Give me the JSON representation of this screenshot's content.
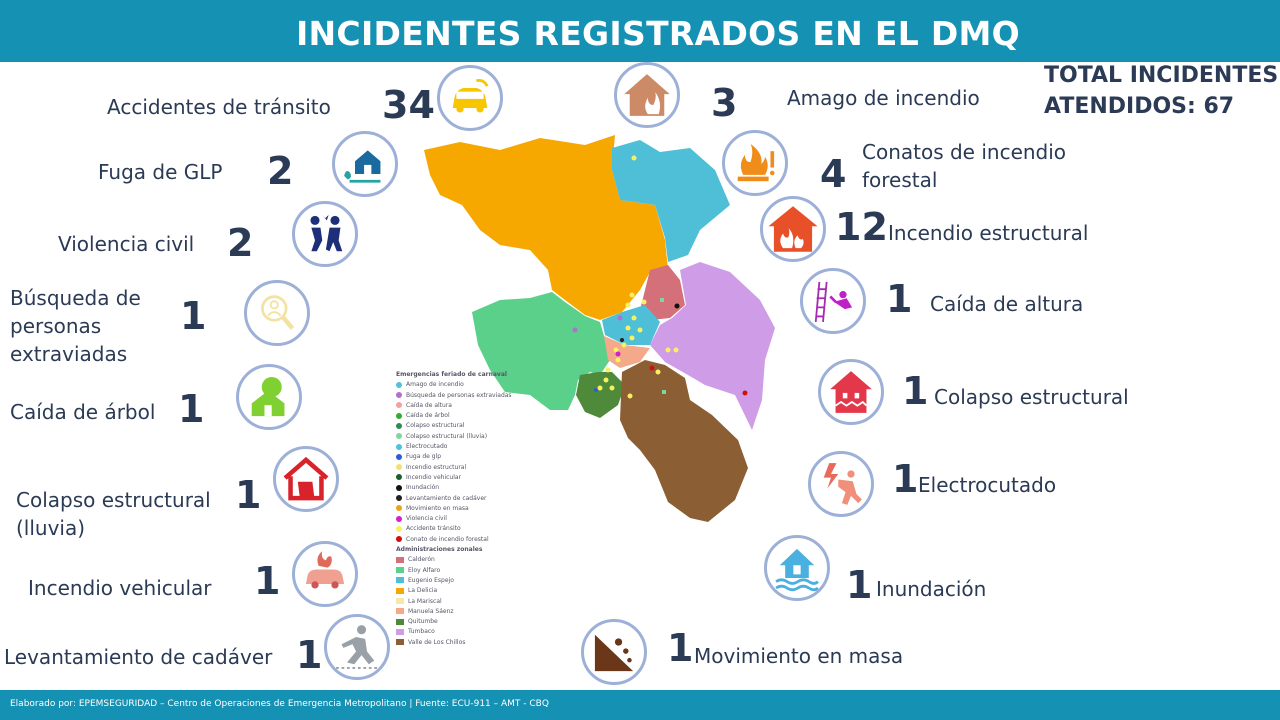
{
  "title": "INCIDENTES REGISTRADOS EN EL DMQ",
  "total_line1": "TOTAL INCIDENTES",
  "total_line2": "ATENDIDOS: 67",
  "footer": "Elaborado por: EPEMSEGURIDAD – Centro de Operaciones de Emergencia Metropolitano | Fuente: ECU-911 – AMT - CBQ",
  "incidents": {
    "accidentes": {
      "label": "Accidentes de tránsito",
      "count": "34",
      "icon": "car-icon"
    },
    "glp": {
      "label": "Fuga de GLP",
      "count": "2",
      "icon": "gas-leak-icon"
    },
    "violencia": {
      "label": "Violencia civil",
      "count": "2",
      "icon": "fight-icon"
    },
    "busqueda": {
      "label1": "Búsqueda de",
      "label2": "personas",
      "label3": "extraviadas",
      "count": "1",
      "icon": "search-person-icon"
    },
    "arbol": {
      "label": "Caída de árbol",
      "count": "1",
      "icon": "fallen-tree-icon"
    },
    "colapso_lluvia": {
      "label1": "Colapso estructural",
      "label2": "(lluvia)",
      "count": "1",
      "icon": "collapsed-house-icon"
    },
    "vehicular": {
      "label": "Incendio vehicular",
      "count": "1",
      "icon": "car-fire-icon"
    },
    "cadaver": {
      "label": "Levantamiento de cadáver",
      "count": "1",
      "icon": "falling-person-icon"
    },
    "amago": {
      "label": "Amago de incendio",
      "count": "3",
      "icon": "house-fire-icon"
    },
    "conatos": {
      "label1": "Conatos de incendio",
      "label2": "forestal",
      "count": "4",
      "icon": "forest-fire-icon"
    },
    "estructural": {
      "label": "Incendio estructural",
      "count": "12",
      "icon": "building-fire-icon"
    },
    "altura": {
      "label": "Caída de altura",
      "count": "1",
      "icon": "fall-from-height-icon"
    },
    "colapso": {
      "label": "Colapso estructural",
      "count": "1",
      "icon": "structural-collapse-icon"
    },
    "electrocutado": {
      "label": "Electrocutado",
      "count": "1",
      "icon": "electrocution-icon"
    },
    "inundacion": {
      "label": "Inundación",
      "count": "1",
      "icon": "flood-icon"
    },
    "movimiento": {
      "label": "Movimiento en masa",
      "count": "1",
      "icon": "landslide-icon"
    }
  },
  "legend": {
    "title": "Emergencias feriado de carnaval",
    "items": [
      {
        "label": "Amago de incendio",
        "color": "#4fc3d8"
      },
      {
        "label": "Búsqueda de personas extraviadas",
        "color": "#b070d0"
      },
      {
        "label": "Caída de altura",
        "color": "#f4a0a0"
      },
      {
        "label": "Caída de árbol",
        "color": "#33aa33"
      },
      {
        "label": "Colapso estructural",
        "color": "#2e8b57"
      },
      {
        "label": "Colapso estructural (lluvia)",
        "color": "#7fd6a0"
      },
      {
        "label": "Electrocutado",
        "color": "#4fc3d8"
      },
      {
        "label": "Fuga de glp",
        "color": "#2e5cd8"
      },
      {
        "label": "Incendio estructural",
        "color": "#f0e07a"
      },
      {
        "label": "Incendio vehicular",
        "color": "#1d5e2e"
      },
      {
        "label": "Inundación",
        "color": "#111111"
      },
      {
        "label": "Levantamiento de cadáver",
        "color": "#222222"
      },
      {
        "label": "Movimiento en masa",
        "color": "#f0a020"
      },
      {
        "label": "Violencia civil",
        "color": "#d020d0"
      },
      {
        "label": "Accidente tránsito",
        "color": "#f7f060"
      },
      {
        "label": "Conato de incendio forestal",
        "color": "#d01010"
      }
    ],
    "zones_title": "Administraciones zonales",
    "zones": [
      {
        "label": "Calderón",
        "color": "#d4707a"
      },
      {
        "label": "Eloy Alfaro",
        "color": "#5ad08a"
      },
      {
        "label": "Eugenio Espejo",
        "color": "#4fbfd8"
      },
      {
        "label": "La Delicia",
        "color": "#f6a800"
      },
      {
        "label": "La Mariscal",
        "color": "#f7e7a8"
      },
      {
        "label": "Manuela Sáenz",
        "color": "#f4a98a"
      },
      {
        "label": "Quitumbe",
        "color": "#4e8a3a"
      },
      {
        "label": "Tumbaco",
        "color": "#cf9ce8"
      },
      {
        "label": "Valle de Los Chillos",
        "color": "#8b5e34"
      }
    ]
  }
}
